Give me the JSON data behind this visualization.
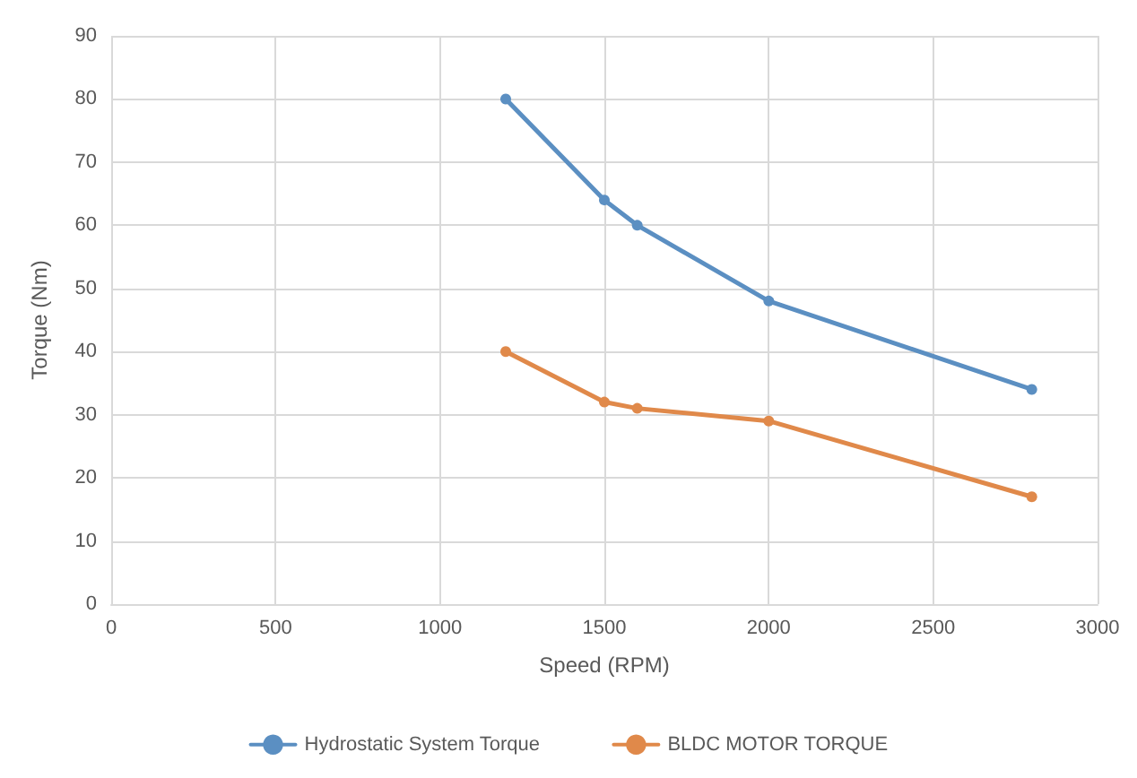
{
  "chart_data": {
    "type": "line",
    "xlabel": "Speed (RPM)",
    "ylabel": "Torque (Nm)",
    "x": [
      1200,
      1500,
      1600,
      2000,
      2800
    ],
    "series": [
      {
        "name": "Hydrostatic System Torque",
        "color": "#5b8fc2",
        "values": [
          80,
          64,
          60,
          48,
          34
        ]
      },
      {
        "name": "BLDC MOTOR TORQUE",
        "color": "#e0894a",
        "values": [
          40,
          32,
          31,
          29,
          17
        ]
      }
    ],
    "xlim": [
      0,
      3000
    ],
    "xticks": [
      0,
      500,
      1000,
      1500,
      2000,
      2500,
      3000
    ],
    "ylim": [
      0,
      90
    ],
    "yticks": [
      0,
      10,
      20,
      30,
      40,
      50,
      60,
      70,
      80,
      90
    ],
    "grid": true,
    "legend": "bottom",
    "marker": "circle",
    "line_style": "solid"
  }
}
